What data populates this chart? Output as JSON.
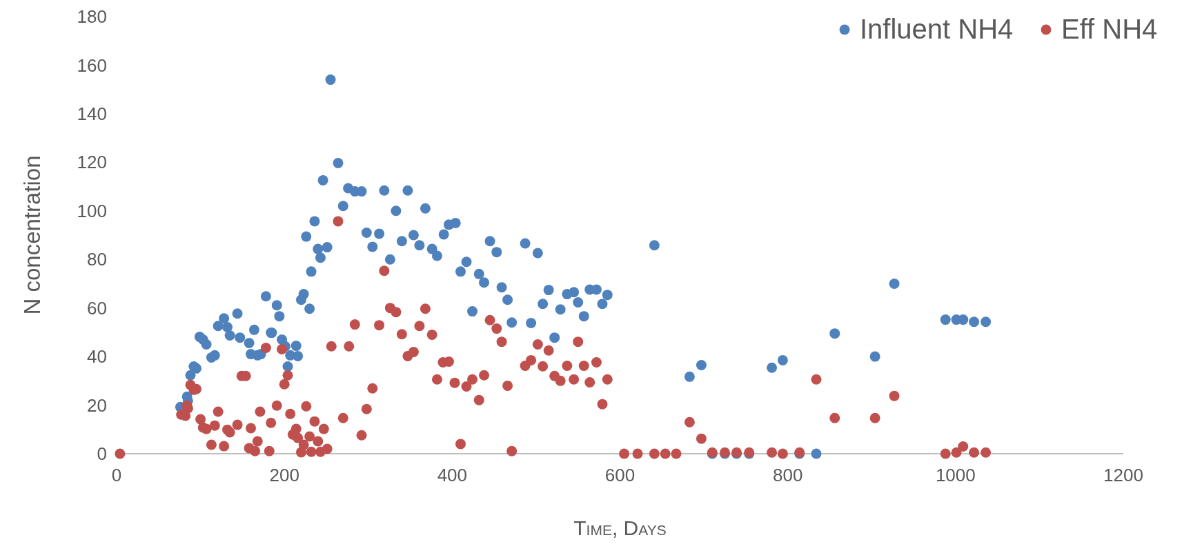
{
  "chart_data": {
    "type": "scatter",
    "xlabel": "Time, Days",
    "ylabel": "N concentration",
    "xlim": [
      0,
      1200
    ],
    "xticks": [
      0,
      200,
      400,
      600,
      800,
      1000,
      1200
    ],
    "ylim": [
      0,
      180
    ],
    "yticks": [
      0,
      20,
      40,
      60,
      80,
      100,
      120,
      140,
      160,
      180
    ],
    "grid": false,
    "legend": "top right",
    "marker": "circle",
    "series": [
      {
        "name": "Influent NH4",
        "color": "#4f81bd",
        "x": [
          76,
          84,
          85,
          88,
          92,
          95,
          99,
          103,
          107,
          113,
          117,
          121,
          128,
          132,
          135,
          144,
          147,
          158,
          160,
          164,
          168,
          172,
          178,
          184,
          185,
          191,
          194,
          197,
          201,
          204,
          207,
          214,
          216,
          220,
          223,
          226,
          230,
          232,
          236,
          240,
          243,
          246,
          251,
          255,
          264,
          270,
          276,
          284,
          292,
          298,
          305,
          313,
          319,
          326,
          333,
          340,
          347,
          354,
          361,
          368,
          376,
          382,
          390,
          396,
          404,
          410,
          417,
          424,
          432,
          438,
          445,
          453,
          459,
          466,
          471,
          487,
          494,
          502,
          508,
          515,
          522,
          529,
          537,
          545,
          550,
          557,
          564,
          572,
          579,
          585,
          641,
          683,
          697,
          710,
          725,
          739,
          754,
          781,
          794,
          814,
          834,
          856,
          904,
          927,
          988,
          1001,
          1009,
          1022,
          1036
        ],
        "values": [
          19.2,
          23.5,
          21.8,
          32.3,
          35.9,
          35.1,
          48.1,
          47,
          45,
          39.6,
          40.5,
          52.6,
          55.7,
          52.1,
          48.7,
          57.7,
          47.8,
          45.6,
          41,
          51,
          40.5,
          41,
          64.8,
          49.8,
          49.8,
          61.1,
          56.6,
          47,
          44.2,
          35.9,
          40.5,
          44.4,
          40.2,
          63.4,
          65.7,
          89.4,
          59.7,
          75,
          95.7,
          84.3,
          80.7,
          112.6,
          85,
          154,
          119.7,
          102,
          109.3,
          108,
          108,
          91,
          85.2,
          90.6,
          108.4,
          80,
          100,
          87.5,
          108.4,
          90,
          85.8,
          101,
          84.3,
          81.5,
          90.3,
          94.3,
          95,
          75,
          79,
          58.6,
          74,
          70.5,
          87.5,
          83,
          68.5,
          63.4,
          54,
          86.6,
          53.8,
          82.6,
          61.7,
          67.4,
          47.8,
          59.4,
          65.7,
          66.5,
          62.3,
          56.6,
          67.6,
          67.6,
          61.7,
          65.4,
          85.8,
          31.7,
          36.5,
          0,
          0,
          0,
          0,
          35.4,
          38.5,
          0,
          0,
          49.5,
          40,
          70,
          55.2,
          55.2,
          55.2,
          54.3,
          54.3
        ]
      },
      {
        "name": "Eff NH4",
        "color": "#c0504d",
        "x": [
          4,
          77,
          82,
          84,
          85,
          88,
          92,
          95,
          100,
          103,
          107,
          113,
          117,
          121,
          128,
          132,
          135,
          144,
          149,
          154,
          158,
          160,
          165,
          168,
          171,
          178,
          182,
          184,
          191,
          197,
          200,
          204,
          207,
          210,
          214,
          216,
          220,
          223,
          226,
          230,
          232,
          236,
          240,
          243,
          247,
          251,
          256,
          264,
          270,
          277,
          284,
          292,
          298,
          305,
          313,
          319,
          326,
          333,
          340,
          347,
          354,
          361,
          368,
          376,
          382,
          389,
          396,
          403,
          410,
          417,
          424,
          432,
          438,
          445,
          453,
          459,
          466,
          471,
          487,
          494,
          502,
          508,
          515,
          522,
          529,
          537,
          545,
          550,
          557,
          564,
          572,
          579,
          585,
          605,
          621,
          641,
          654,
          667,
          683,
          697,
          710,
          725,
          739,
          754,
          781,
          794,
          814,
          834,
          856,
          904,
          927,
          988,
          1001,
          1009,
          1022,
          1036
        ],
        "values": [
          0,
          16.1,
          15.6,
          19.8,
          18.7,
          28.3,
          26.3,
          26.6,
          14.2,
          10.8,
          10.2,
          3.7,
          11.6,
          17.3,
          3.1,
          9.9,
          8.8,
          11.9,
          32,
          32,
          2.3,
          10.5,
          1.1,
          5.1,
          17.3,
          43.6,
          1.1,
          12.7,
          19.8,
          43,
          28.6,
          32.3,
          16.4,
          7.9,
          10.2,
          6.5,
          0.6,
          3.7,
          19.5,
          7.1,
          0.8,
          13.3,
          5.1,
          0.8,
          10.2,
          2,
          44.2,
          95.7,
          14.7,
          44.2,
          53.2,
          7.6,
          18.4,
          26.9,
          52.9,
          75.3,
          60,
          58.3,
          49.2,
          40.2,
          41.9,
          52.6,
          59.7,
          49,
          30.6,
          37.6,
          37.9,
          29.2,
          4,
          27.7,
          30.6,
          22.1,
          32.3,
          55,
          51.5,
          46.1,
          28,
          1.1,
          36.2,
          38.5,
          45,
          36,
          42.5,
          32,
          30,
          36.2,
          30.6,
          46.1,
          36.2,
          29.4,
          37.6,
          20.4,
          30.6,
          0,
          0,
          0,
          0,
          0,
          13,
          6.2,
          0.5,
          0.5,
          0.5,
          0.5,
          0.5,
          0,
          0.5,
          30.6,
          14.7,
          14.7,
          23.8,
          0,
          0.5,
          3,
          0.5,
          0.5
        ]
      }
    ]
  }
}
